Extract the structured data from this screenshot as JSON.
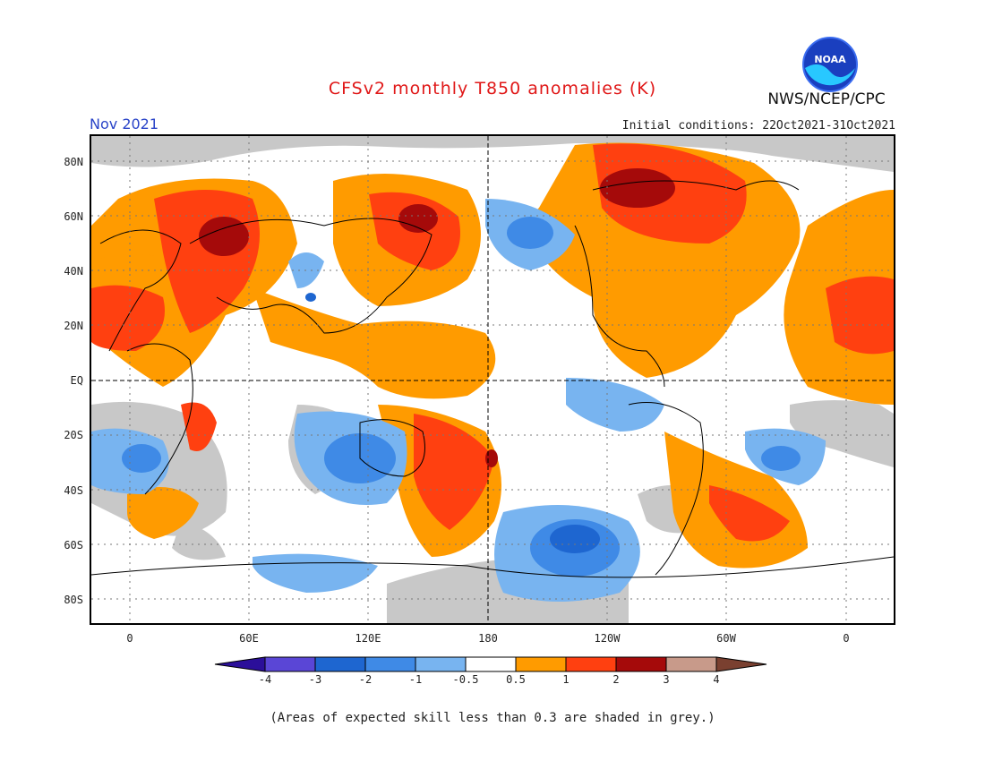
{
  "title": "CFSv2 monthly T850 anomalies (K)",
  "org": "NWS/NCEP/CPC",
  "logo_text": "NOAA",
  "month": "Nov 2021",
  "initial_conditions": "Initial conditions: 22Oct2021-31Oct2021",
  "footnote": "(Areas of expected skill less than 0.3 are shaded in grey.)",
  "map": {
    "lat_labels": [
      "80N",
      "60N",
      "40N",
      "20N",
      "EQ",
      "20S",
      "40S",
      "60S",
      "80S"
    ],
    "lon_labels": [
      "0",
      "60E",
      "120E",
      "180",
      "120W",
      "60W",
      "0"
    ]
  },
  "colorbar": {
    "labels": [
      "-4",
      "-3",
      "-2",
      "-1",
      "-0.5",
      "0.5",
      "1",
      "2",
      "3",
      "4"
    ],
    "colors": [
      "#2b0f9a",
      "#5a46d6",
      "#1e66d0",
      "#3f8ae6",
      "#78b4f0",
      "#ffffff",
      "#ff9b00",
      "#ff4010",
      "#a50a0a",
      "#c89a8a",
      "#7a4030"
    ],
    "skill_grey": "#c8c8c8"
  }
}
